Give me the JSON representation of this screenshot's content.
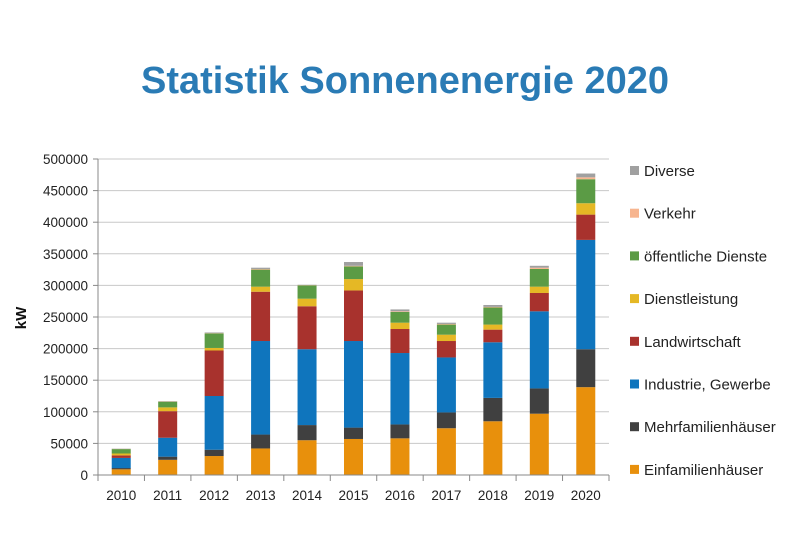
{
  "chart_data": {
    "type": "bar",
    "stacked": true,
    "title": "Statistik Sonnenenergie 2020",
    "xlabel": "",
    "ylabel": "kW",
    "ylim": [
      0,
      500000
    ],
    "yticks": [
      0,
      50000,
      100000,
      150000,
      200000,
      250000,
      300000,
      350000,
      400000,
      450000,
      500000
    ],
    "ytick_labels": [
      "0",
      "50000",
      "100000",
      "150000",
      "200000",
      "250000",
      "300000",
      "350000",
      "400000",
      "450000",
      "500000"
    ],
    "grid": true,
    "legend_position": "right",
    "categories": [
      "2010",
      "2011",
      "2012",
      "2013",
      "2014",
      "2015",
      "2016",
      "2017",
      "2018",
      "2019",
      "2020"
    ],
    "series": [
      {
        "name": "Einfamilienhäuser",
        "color": "#e8900c",
        "values": [
          9000,
          24000,
          30000,
          42000,
          55000,
          57000,
          58000,
          74000,
          85000,
          97000,
          139000
        ]
      },
      {
        "name": "Mehrfamilienhäuser",
        "color": "#404040",
        "values": [
          2000,
          5000,
          10000,
          22000,
          24000,
          18000,
          22000,
          25000,
          37000,
          40000,
          60000
        ]
      },
      {
        "name": "Industrie, Gewerbe",
        "color": "#0f75bd",
        "values": [
          16000,
          30000,
          85000,
          148000,
          120000,
          137000,
          113000,
          87000,
          88000,
          122000,
          173000
        ]
      },
      {
        "name": "Landwirtschaft",
        "color": "#a8322d",
        "values": [
          4000,
          42000,
          72000,
          78000,
          68000,
          80000,
          38000,
          26000,
          20000,
          29000,
          40000
        ]
      },
      {
        "name": "Dienstleistung",
        "color": "#e5b825",
        "values": [
          3000,
          6000,
          4000,
          8000,
          12000,
          18000,
          10000,
          10000,
          8000,
          10000,
          18000
        ]
      },
      {
        "name": "öffentliche Dienste",
        "color": "#5b9b45",
        "values": [
          7000,
          9000,
          23000,
          27000,
          21000,
          20000,
          17000,
          16000,
          27000,
          28000,
          38000
        ]
      },
      {
        "name": "Verkehr",
        "color": "#f7b58f",
        "values": [
          400,
          500,
          500,
          1000,
          500,
          1000,
          1000,
          1000,
          1000,
          2000,
          3000
        ]
      },
      {
        "name": "Diverse",
        "color": "#a0a0a0",
        "values": [
          400,
          500,
          1000,
          2000,
          500,
          6000,
          3000,
          2000,
          3000,
          3000,
          6000
        ]
      }
    ],
    "legend_order": [
      "Diverse",
      "Verkehr",
      "öffentliche Dienste",
      "Dienstleistung",
      "Landwirtschaft",
      "Industrie, Gewerbe",
      "Mehrfamilienhäuser",
      "Einfamilienhäuser"
    ]
  }
}
